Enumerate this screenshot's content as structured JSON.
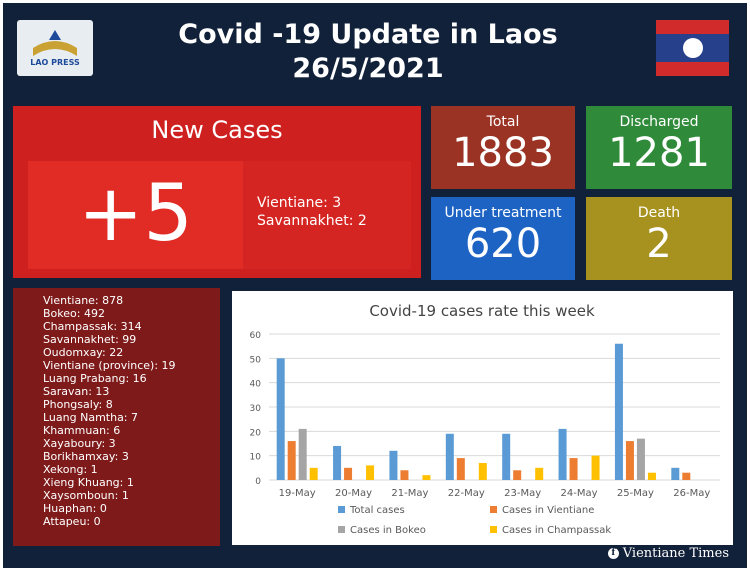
{
  "header": {
    "title_line1": "Covid -19 Update in Laos",
    "title_line2": "26/5/2021",
    "logo_text": "LAO PRESS"
  },
  "new_cases": {
    "title": "New Cases",
    "count": "+5",
    "breakdown": [
      "Vientiane: 3",
      "Savannakhet: 2"
    ]
  },
  "stats": {
    "total_label": "Total",
    "total_value": "1883",
    "discharged_label": "Discharged",
    "discharged_value": "1281",
    "under_label": "Under treatment",
    "under_value": "620",
    "death_label": "Death",
    "death_value": "2"
  },
  "provinces": [
    "Vientiane: 878",
    "Bokeo: 492",
    "Champassak: 314",
    "Savannakhet: 99",
    "Oudomxay: 22",
    "Vientiane (province): 19",
    "Luang Prabang: 16",
    "Saravan: 13",
    "Phongsaly: 8",
    "Luang Namtha: 7",
    "Khammuan: 6",
    "Xayaboury: 3",
    "Borikhamxay: 3",
    "Xekong: 1",
    "Xieng Khuang: 1",
    "Xaysomboun: 1",
    "Huaphan: 0",
    "Attapeu: 0"
  ],
  "chart_data": {
    "type": "bar",
    "title": "Covid-19 cases rate this week",
    "categories": [
      "19-May",
      "20-May",
      "21-May",
      "22-May",
      "23-May",
      "24-May",
      "25-May",
      "26-May"
    ],
    "ylim": [
      0,
      60
    ],
    "yticks": [
      0,
      10,
      20,
      30,
      40,
      50,
      60
    ],
    "grid": true,
    "legend_position": "bottom",
    "series": [
      {
        "name": "Total cases",
        "color": "#5b9bd5",
        "values": [
          50,
          14,
          12,
          19,
          19,
          21,
          56,
          5
        ]
      },
      {
        "name": "Cases in Vientiane",
        "color": "#ed7d31",
        "values": [
          16,
          5,
          4,
          9,
          4,
          9,
          16,
          3
        ]
      },
      {
        "name": "Cases in Bokeo",
        "color": "#a5a5a5",
        "values": [
          21,
          0,
          0,
          0,
          0,
          0,
          17,
          0
        ]
      },
      {
        "name": "Cases in Champassak",
        "color": "#ffc000",
        "values": [
          5,
          6,
          2,
          7,
          5,
          10,
          3,
          0
        ]
      }
    ]
  },
  "footer": {
    "source": "Vientiane Times"
  }
}
